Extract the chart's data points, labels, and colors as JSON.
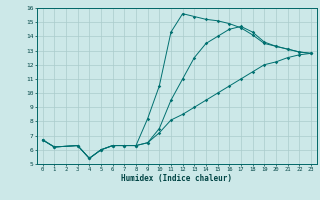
{
  "title": "",
  "xlabel": "Humidex (Indice chaleur)",
  "bg_color": "#cce8e8",
  "grid_color": "#aacccc",
  "line_color": "#007070",
  "xlim": [
    -0.5,
    23.5
  ],
  "ylim": [
    5,
    16
  ],
  "xticks": [
    0,
    1,
    2,
    3,
    4,
    5,
    6,
    7,
    8,
    9,
    10,
    11,
    12,
    13,
    14,
    15,
    16,
    17,
    18,
    19,
    20,
    21,
    22,
    23
  ],
  "yticks": [
    5,
    6,
    7,
    8,
    9,
    10,
    11,
    12,
    13,
    14,
    15,
    16
  ],
  "line1_x": [
    0,
    1,
    3,
    4,
    5,
    6,
    7,
    8,
    9,
    10,
    11,
    12,
    13,
    14,
    15,
    16,
    17,
    18,
    19,
    20,
    21,
    22,
    23
  ],
  "line1_y": [
    6.7,
    6.2,
    6.3,
    5.4,
    6.0,
    6.3,
    6.3,
    6.3,
    6.5,
    7.2,
    8.1,
    8.5,
    9.0,
    9.5,
    10.0,
    10.5,
    11.0,
    11.5,
    12.0,
    12.2,
    12.5,
    12.7,
    12.8
  ],
  "line2_x": [
    0,
    1,
    3,
    4,
    5,
    6,
    7,
    8,
    9,
    10,
    11,
    12,
    13,
    14,
    15,
    16,
    17,
    18,
    19,
    20,
    21,
    22,
    23
  ],
  "line2_y": [
    6.7,
    6.2,
    6.3,
    5.4,
    6.0,
    6.3,
    6.3,
    6.3,
    8.2,
    10.5,
    14.3,
    15.6,
    15.4,
    15.2,
    15.1,
    14.9,
    14.6,
    14.1,
    13.5,
    13.3,
    13.1,
    12.9,
    12.8
  ],
  "line3_x": [
    0,
    1,
    3,
    4,
    5,
    6,
    7,
    8,
    9,
    10,
    11,
    12,
    13,
    14,
    15,
    16,
    17,
    18,
    19,
    20,
    21,
    22,
    23
  ],
  "line3_y": [
    6.7,
    6.2,
    6.3,
    5.4,
    6.0,
    6.3,
    6.3,
    6.3,
    6.5,
    7.5,
    9.5,
    11.0,
    12.5,
    13.5,
    14.0,
    14.5,
    14.7,
    14.3,
    13.6,
    13.3,
    13.1,
    12.9,
    12.8
  ]
}
